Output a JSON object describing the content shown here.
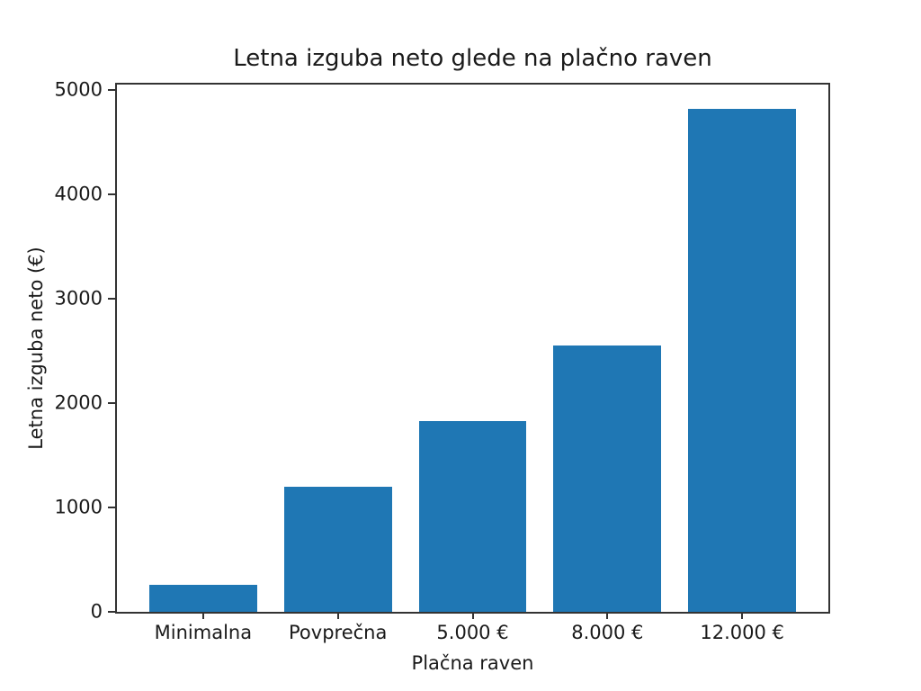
{
  "chart_data": {
    "type": "bar",
    "title": "Letna izguba neto glede na plačno raven",
    "xlabel": "Plačna raven",
    "ylabel": "Letna izguba neto (€)",
    "categories": [
      "Minimalna",
      "Povprečna",
      "5.000 €",
      "8.000 €",
      "12.000 €"
    ],
    "values": [
      260,
      1200,
      1830,
      2550,
      4820
    ],
    "yticks": [
      0,
      1000,
      2000,
      3000,
      4000,
      5000
    ],
    "ylim": [
      0,
      5050
    ],
    "bar_color": "#1f77b4",
    "axis_color": "#333333",
    "background_color": "#ffffff",
    "grid": false,
    "legend": "none"
  }
}
